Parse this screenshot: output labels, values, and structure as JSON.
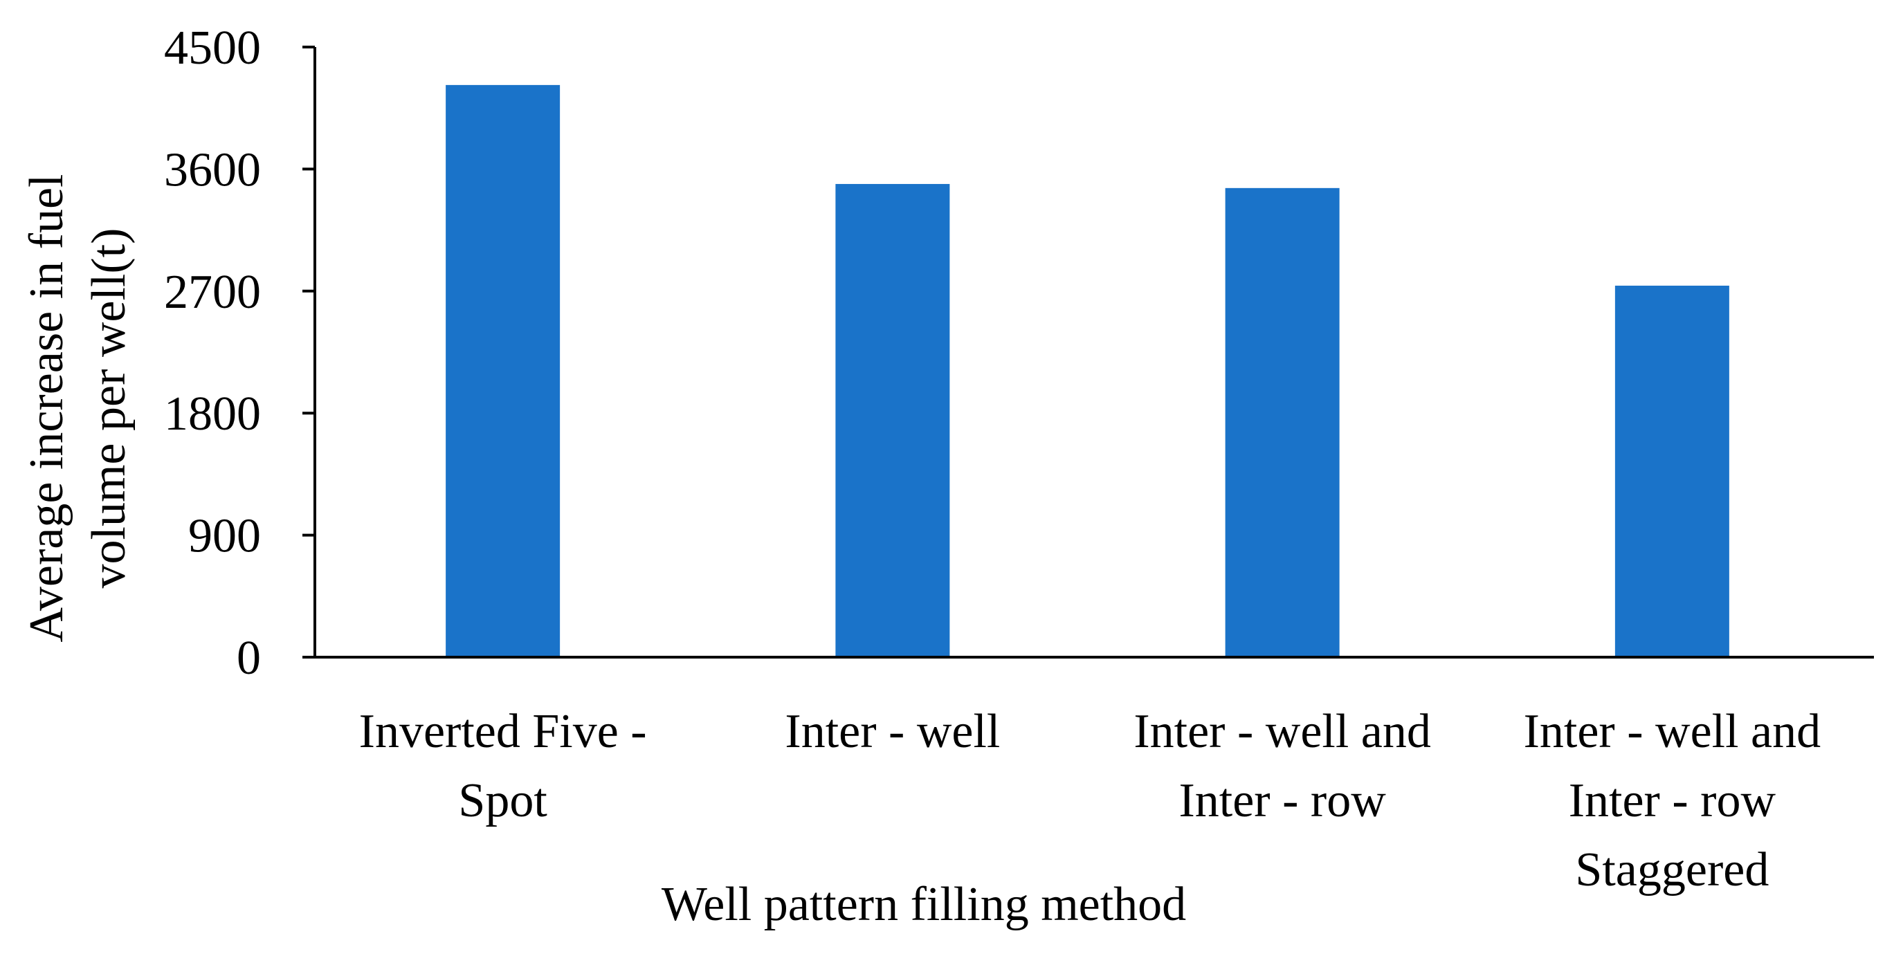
{
  "chart_data": {
    "type": "bar",
    "categories": [
      [
        "Inverted Five -",
        "Spot"
      ],
      [
        "Inter - well"
      ],
      [
        "Inter - well and",
        "Inter - row"
      ],
      [
        "Inter - well and",
        "Inter - row",
        "Staggered"
      ]
    ],
    "values": [
      4220,
      3490,
      3460,
      2740
    ],
    "yticks": [
      "0",
      "900",
      "1800",
      "2700",
      "3600",
      "4500"
    ],
    "ylim": [
      0,
      4500
    ],
    "xlabel": "Well pattern filling method",
    "ylabel_lines": [
      "Average increase in fuel",
      "volume per well(t)"
    ],
    "bar_color": "#1a73c9",
    "axis_color": "#000000",
    "grid": false,
    "legend": "none"
  }
}
